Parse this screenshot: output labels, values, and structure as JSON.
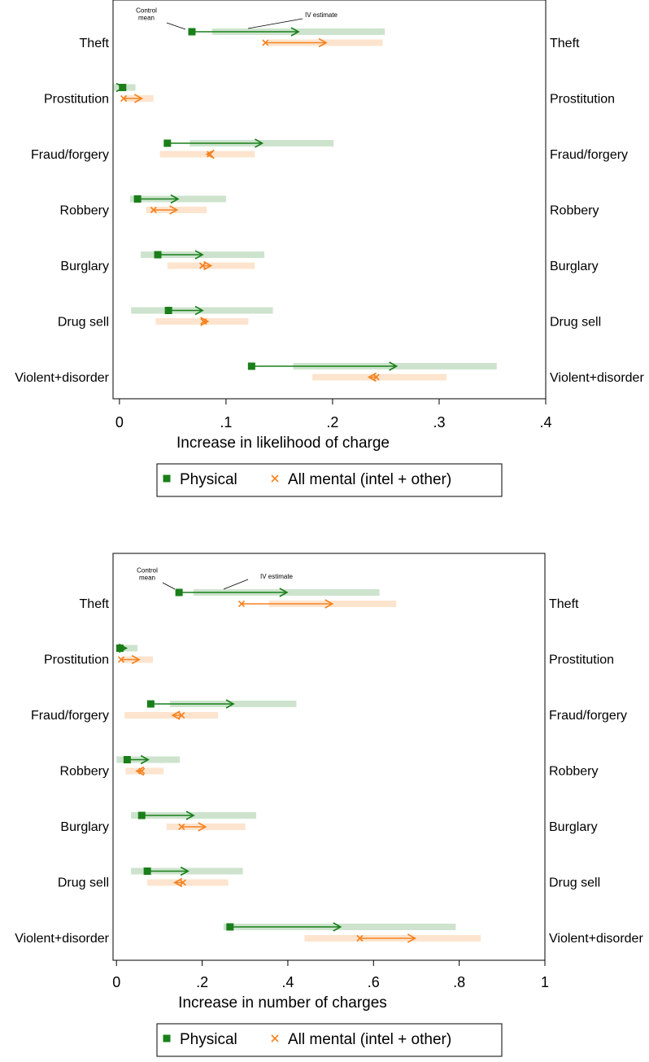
{
  "chart_data": [
    {
      "type": "arrow",
      "xlabel": "Increase in likelihood of charge",
      "categories": [
        "Theft",
        "Prostitution",
        "Fraud/forgery",
        "Robbery",
        "Burglary",
        "Drug sell",
        "Violent+disorder"
      ],
      "series": [
        {
          "name": "Physical",
          "color": "#1a7f1a",
          "marker": "square",
          "control_mean": [
            0.068,
            0.003,
            0.045,
            0.017,
            0.036,
            0.046,
            0.124
          ],
          "iv_estimate": [
            0.168,
            0.004,
            0.134,
            0.055,
            0.078,
            0.078,
            0.26
          ],
          "ci_low": [
            0.087,
            -0.006,
            0.066,
            0.01,
            0.02,
            0.011,
            0.163
          ],
          "ci_high": [
            0.249,
            0.015,
            0.201,
            0.1,
            0.136,
            0.144,
            0.354
          ]
        },
        {
          "name": "All mental (intel + other)",
          "color": "#f58220",
          "marker": "x",
          "control_mean": [
            0.137,
            0.004,
            0.085,
            0.032,
            0.078,
            0.079,
            0.241
          ],
          "iv_estimate": [
            0.194,
            0.021,
            0.082,
            0.054,
            0.086,
            0.083,
            0.234
          ],
          "ci_low": [
            0.14,
            0.004,
            0.038,
            0.025,
            0.045,
            0.034,
            0.181
          ],
          "ci_high": [
            0.247,
            0.032,
            0.127,
            0.082,
            0.127,
            0.121,
            0.307
          ]
        }
      ],
      "xlim": [
        -0.006,
        0.4
      ],
      "xticks": [
        0,
        {
          "value": 0.1,
          "label": ".1"
        },
        {
          "value": 0.2,
          "label": ".2"
        },
        {
          "value": 0.3,
          "label": ".3"
        },
        {
          "value": 0.4,
          "label": ".4"
        }
      ],
      "annotations": [
        {
          "lines": [
            "Control",
            "mean"
          ]
        },
        {
          "lines": [
            "IV estimate"
          ]
        }
      ]
    },
    {
      "type": "arrow",
      "xlabel": "Increase in number of charges",
      "categories": [
        "Theft",
        "Prostitution",
        "Fraud/forgery",
        "Robbery",
        "Burglary",
        "Drug sell",
        "Violent+disorder"
      ],
      "series": [
        {
          "name": "Physical",
          "color": "#1a7f1a",
          "marker": "square",
          "control_mean": [
            0.146,
            0.008,
            0.08,
            0.025,
            0.059,
            0.072,
            0.265
          ],
          "iv_estimate": [
            0.398,
            0.023,
            0.273,
            0.074,
            0.18,
            0.167,
            0.523
          ],
          "ci_low": [
            0.18,
            0,
            0.125,
            0,
            0.034,
            0.034,
            0.25
          ],
          "ci_high": [
            0.614,
            0.049,
            0.42,
            0.148,
            0.326,
            0.295,
            0.792
          ]
        },
        {
          "name": "All mental (intel + other)",
          "color": "#f58220",
          "marker": "x",
          "control_mean": [
            0.292,
            0.011,
            0.152,
            0.059,
            0.152,
            0.155,
            0.568
          ],
          "iv_estimate": [
            0.504,
            0.053,
            0.131,
            0.047,
            0.208,
            0.136,
            0.697
          ],
          "ci_low": [
            0.356,
            0.011,
            0.019,
            0.021,
            0.117,
            0.072,
            0.439
          ],
          "ci_high": [
            0.653,
            0.085,
            0.237,
            0.11,
            0.301,
            0.261,
            0.85
          ]
        }
      ],
      "xlim": [
        -0.008,
        1
      ],
      "xticks": [
        0,
        {
          "value": 0.2,
          "label": ".2"
        },
        {
          "value": 0.4,
          "label": ".4"
        },
        {
          "value": 0.6,
          "label": ".6"
        },
        {
          "value": 0.8,
          "label": ".8"
        },
        1
      ],
      "annotations": [
        {
          "lines": [
            "Control",
            "mean"
          ]
        },
        {
          "lines": [
            "IV estimate"
          ]
        }
      ]
    }
  ]
}
